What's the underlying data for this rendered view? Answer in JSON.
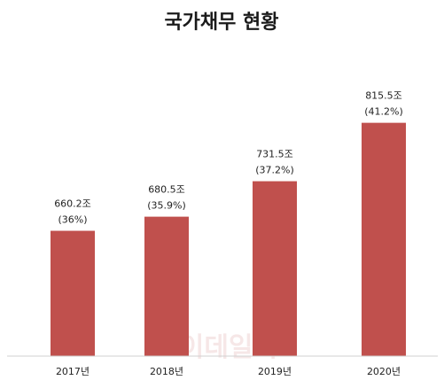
{
  "chart_data": {
    "type": "bar",
    "title": "국가채무 현황",
    "categories": [
      "2017년",
      "2018년",
      "2019년",
      "2020년"
    ],
    "values": [
      660.2,
      680.5,
      731.5,
      815.5
    ],
    "value_labels": [
      "660.2조",
      "680.5조",
      "731.5조",
      "815.5조"
    ],
    "ratio_labels": [
      "(36%)",
      "(35.9%)",
      "(37.2%)",
      "(41.2%)"
    ],
    "unit": "조",
    "ylim": [
      480,
      880
    ],
    "grid": false,
    "bar_color": "#c0504d"
  },
  "watermark": "이데일리"
}
